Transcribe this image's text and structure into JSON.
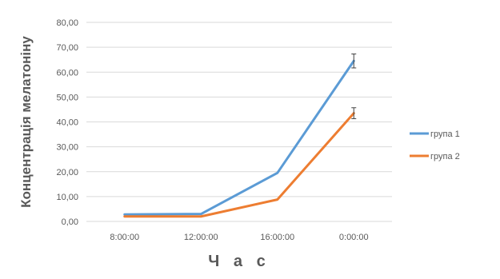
{
  "chart_data": {
    "type": "line",
    "title": "",
    "xlabel": "Ч а с",
    "ylabel": "Концентрація мелатоніну",
    "categories": [
      "8:00:00",
      "12:00:00",
      "16:00:00",
      "0:00:00"
    ],
    "ylim": [
      0,
      80
    ],
    "yticks": [
      "0,00",
      "10,00",
      "20,00",
      "30,00",
      "40,00",
      "50,00",
      "60,00",
      "70,00",
      "80,00"
    ],
    "grid": true,
    "legend_position": "right",
    "series": [
      {
        "name": "група 1",
        "color": "#5B9BD5",
        "values": [
          2.8,
          3.0,
          19.5,
          64.5
        ],
        "error": [
          0,
          0,
          0,
          2.8
        ]
      },
      {
        "name": "група 2",
        "color": "#ED7D31",
        "values": [
          2.0,
          2.0,
          8.8,
          43.5
        ],
        "error": [
          0,
          0,
          0,
          2.2
        ]
      }
    ]
  }
}
